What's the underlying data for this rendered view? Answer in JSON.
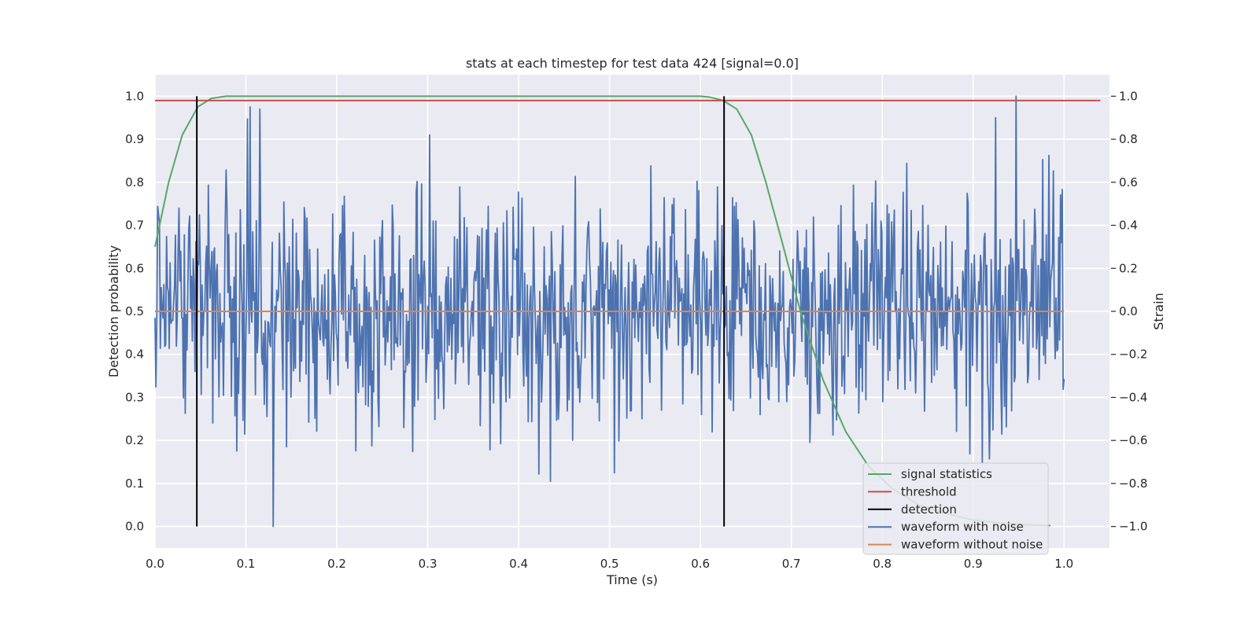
{
  "chart_data": {
    "type": "line",
    "title": "stats at each timestep for test data 424 [signal=0.0]",
    "xlabel": "Time (s)",
    "ylabel": "Detection probability",
    "y2label": "Strain",
    "xlim": [
      0.0,
      1.05
    ],
    "ylim": [
      -0.05,
      1.05
    ],
    "y2lim": [
      -1.1,
      1.1
    ],
    "xticks": [
      "0.0",
      "0.1",
      "0.2",
      "0.3",
      "0.4",
      "0.5",
      "0.6",
      "0.7",
      "0.8",
      "0.9",
      "1.0"
    ],
    "yticks": [
      "0.0",
      "0.1",
      "0.2",
      "0.3",
      "0.4",
      "0.5",
      "0.6",
      "0.7",
      "0.8",
      "0.9",
      "1.0"
    ],
    "y2ticks": [
      "−1.0",
      "−0.8",
      "−0.6",
      "−0.4",
      "−0.2",
      "0.0",
      "0.2",
      "0.4",
      "0.6",
      "0.8",
      "1.0"
    ],
    "grid": true,
    "legend_position": "bottom-right",
    "colors": {
      "background": "#eaeaf2",
      "signal_statistics": "#55a868",
      "threshold": "#c44e52",
      "detection": "#000000",
      "waveform_with_noise": "#4c72b0",
      "waveform_without_noise": "#dd8452"
    },
    "series": [
      {
        "name": "signal statistics",
        "axis": "left",
        "x": [
          0.0,
          0.015,
          0.03,
          0.047,
          0.062,
          0.078,
          0.1,
          0.2,
          0.3,
          0.4,
          0.5,
          0.6,
          0.61,
          0.625,
          0.64,
          0.656,
          0.672,
          0.69,
          0.71,
          0.735,
          0.76,
          0.785,
          0.81,
          0.84,
          0.87,
          0.9,
          0.93,
          0.96,
          0.985
        ],
        "y": [
          0.65,
          0.8,
          0.91,
          0.975,
          0.995,
          1.0,
          1.0,
          1.0,
          1.0,
          1.0,
          1.0,
          1.0,
          0.998,
          0.99,
          0.97,
          0.91,
          0.8,
          0.66,
          0.5,
          0.34,
          0.22,
          0.14,
          0.09,
          0.05,
          0.03,
          0.015,
          0.008,
          0.004,
          0.002
        ]
      },
      {
        "name": "threshold",
        "axis": "left",
        "x": [
          0.0,
          1.04
        ],
        "y": [
          0.99,
          0.99
        ]
      },
      {
        "name": "detection",
        "axis": "left",
        "type": "vlines",
        "x": [
          0.046,
          0.626
        ],
        "y_range": [
          0.0,
          1.0
        ]
      },
      {
        "name": "waveform with noise",
        "axis": "right",
        "type": "noise",
        "x_range": [
          0.0,
          1.0
        ],
        "samples": 1024,
        "approx_std": 0.27,
        "peaks": [
          {
            "x": 0.947,
            "y": 1.0
          },
          {
            "x": 0.13,
            "y": -1.0
          },
          {
            "x": 0.105,
            "y": 0.95
          },
          {
            "x": 0.115,
            "y": 0.94
          },
          {
            "x": 0.302,
            "y": 0.82
          }
        ]
      },
      {
        "name": "waveform without noise",
        "axis": "right",
        "x": [
          0.0,
          1.0
        ],
        "y": [
          0.0,
          0.0
        ]
      }
    ]
  }
}
